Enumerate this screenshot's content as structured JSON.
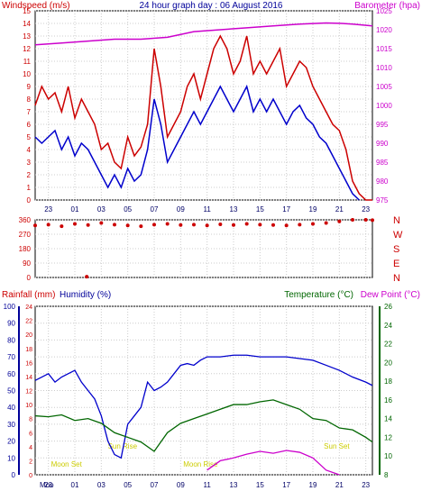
{
  "chart_data": [
    {
      "type": "line",
      "title": "24 hour graph day : 06 August 2016",
      "left_label": "Windspeed (m/s)",
      "right_label": "Barometer (hpa)",
      "x_ticks": [
        "23",
        "01",
        "03",
        "05",
        "07",
        "09",
        "11",
        "13",
        "15",
        "17",
        "19",
        "21",
        "23"
      ],
      "left_ticks": [
        "0",
        "1",
        "2",
        "3",
        "4",
        "5",
        "6",
        "7",
        "8",
        "9",
        "10",
        "11",
        "12",
        "13",
        "14",
        "15"
      ],
      "right_ticks": [
        "975",
        "980",
        "985",
        "990",
        "995",
        "1000",
        "1005",
        "1010",
        "1015",
        "1020",
        "1025"
      ],
      "ylim_left": [
        0,
        15
      ],
      "ylim_right": [
        975,
        1025
      ],
      "series": [
        {
          "color": "#cc0000",
          "x": [
            0,
            0.5,
            1,
            1.5,
            2,
            2.5,
            3,
            3.5,
            4,
            4.5,
            5,
            5.5,
            6,
            6.5,
            7,
            7.5,
            8,
            8.5,
            9,
            9.5,
            10,
            10.5,
            11,
            11.5,
            12,
            12.5,
            13,
            13.5,
            14,
            14.5,
            15,
            15.5,
            16,
            16.5,
            17,
            17.5,
            18,
            18.5,
            19,
            19.5,
            20,
            20.5,
            21,
            21.5,
            22,
            22.5,
            23,
            23.5,
            24,
            24.5,
            25,
            25.5
          ],
          "values": [
            7.5,
            9,
            8,
            8.5,
            7,
            9,
            6.5,
            8,
            7,
            6,
            4,
            4.5,
            3,
            2.5,
            5,
            3.5,
            4.2,
            6,
            12,
            9,
            5,
            6,
            7,
            9,
            10,
            8,
            10,
            12,
            13,
            12,
            10,
            11,
            13,
            10,
            11,
            10,
            11,
            12,
            9,
            10,
            11,
            10.5,
            9,
            8,
            7,
            6,
            5.5,
            4,
            1.5,
            0.5,
            0,
            0
          ]
        },
        {
          "color": "#0000cc",
          "x": [
            0,
            0.5,
            1,
            1.5,
            2,
            2.5,
            3,
            3.5,
            4,
            4.5,
            5,
            5.5,
            6,
            6.5,
            7,
            7.5,
            8,
            8.5,
            9,
            9.5,
            10,
            10.5,
            11,
            11.5,
            12,
            12.5,
            13,
            13.5,
            14,
            14.5,
            15,
            15.5,
            16,
            16.5,
            17,
            17.5,
            18,
            18.5,
            19,
            19.5,
            20,
            20.5,
            21,
            21.5,
            22,
            22.5,
            23,
            23.5,
            24,
            24.5
          ],
          "values": [
            5,
            4.5,
            5,
            5.5,
            4,
            5,
            3.5,
            4.5,
            4,
            3,
            2,
            1,
            2,
            1,
            2.5,
            1.5,
            2,
            4,
            8,
            6,
            3,
            4,
            5,
            6,
            7,
            6,
            7,
            8,
            9,
            8,
            7,
            8,
            9,
            7,
            8,
            7,
            8,
            7,
            6,
            7,
            7.5,
            6.5,
            6,
            5,
            4.5,
            3.5,
            2.5,
            1.5,
            0.5,
            0
          ]
        },
        {
          "color": "#cc00cc",
          "axis": "right",
          "x": [
            0,
            2,
            4,
            6,
            8,
            10,
            12,
            14,
            16,
            18,
            20,
            22,
            23,
            24,
            25.5
          ],
          "values": [
            1016,
            1016.5,
            1017,
            1017.5,
            1017.5,
            1018,
            1019.5,
            1020,
            1020.5,
            1021,
            1021.5,
            1021.8,
            1021.7,
            1021.5,
            1021
          ]
        }
      ]
    },
    {
      "type": "scatter",
      "right_label": [
        "N",
        "W",
        "S",
        "E",
        "N"
      ],
      "left_ticks": [
        "360",
        "270",
        "180",
        "90",
        "0"
      ],
      "ylim": [
        0,
        360
      ],
      "series": [
        {
          "color": "#cc0000",
          "x": [
            0,
            1,
            2,
            3,
            4,
            5,
            6,
            7,
            8,
            9,
            10,
            11,
            12,
            13,
            14,
            15,
            16,
            17,
            18,
            19,
            20,
            21,
            22,
            23,
            24,
            25,
            25.5,
            3.9
          ],
          "values": [
            325,
            330,
            320,
            335,
            328,
            340,
            330,
            325,
            320,
            330,
            335,
            328,
            330,
            325,
            332,
            328,
            335,
            330,
            328,
            325,
            330,
            335,
            340,
            350,
            360,
            360,
            358,
            5
          ]
        }
      ]
    },
    {
      "type": "line",
      "left_labels": [
        "Rainfall (mm)",
        "Humidity (%)"
      ],
      "right_labels": [
        "Temperature (°C)",
        "Dew Point (°C)"
      ],
      "rain_ticks": [
        "0",
        "2",
        "4",
        "6",
        "8",
        "10",
        "12",
        "14",
        "16",
        "18",
        "20",
        "22",
        "24"
      ],
      "humidity_ticks": [
        "0",
        "10",
        "20",
        "30",
        "40",
        "50",
        "60",
        "70",
        "80",
        "90",
        "100"
      ],
      "temp_ticks": [
        "8",
        "10",
        "12",
        "14",
        "16",
        "18",
        "20",
        "22",
        "24",
        "26"
      ],
      "ylim_humidity": [
        0,
        100
      ],
      "ylim_temp": [
        8,
        26
      ],
      "x_labels": [
        "Moo",
        "23",
        "01",
        "03",
        "05",
        "07",
        "09",
        "11",
        "13",
        "15",
        "17",
        "19",
        "21",
        "23"
      ],
      "annotations": [
        "Moon Set",
        "Sun Rise",
        "Moon Rise",
        "Sun Set"
      ],
      "series": [
        {
          "color": "#0000cc",
          "axis": "humidity",
          "x": [
            0,
            0.5,
            1,
            1.5,
            2,
            2.5,
            3,
            3.5,
            4,
            4.5,
            5,
            5.5,
            6,
            6.5,
            7,
            7.5,
            8,
            8.5,
            9,
            9.5,
            10,
            10.5,
            11,
            11.5,
            12,
            12.5,
            13,
            14,
            15,
            16,
            17,
            18,
            19,
            20,
            21,
            22,
            23,
            24,
            25,
            25.5
          ],
          "values": [
            56,
            58,
            60,
            55,
            58,
            60,
            62,
            55,
            50,
            45,
            35,
            20,
            12,
            10,
            30,
            35,
            40,
            55,
            50,
            52,
            55,
            60,
            65,
            66,
            65,
            68,
            70,
            70,
            71,
            71,
            70,
            70,
            70,
            69,
            68,
            65,
            62,
            58,
            55,
            53
          ]
        },
        {
          "color": "#006600",
          "axis": "temperature",
          "x": [
            0,
            1,
            2,
            3,
            4,
            5,
            6,
            7,
            8,
            9,
            10,
            11,
            12,
            13,
            14,
            15,
            16,
            17,
            18,
            19,
            20,
            21,
            22,
            23,
            24,
            25,
            25.5
          ],
          "values": [
            14.3,
            14.2,
            14.4,
            13.8,
            14,
            13.5,
            12.5,
            12,
            11.5,
            10.5,
            12.5,
            13.5,
            14,
            14.5,
            15,
            15.5,
            15.5,
            15.8,
            16,
            15.5,
            15,
            14,
            13.8,
            13,
            12.8,
            12,
            11.5
          ]
        },
        {
          "color": "#cc00cc",
          "axis": "temperature",
          "x": [
            13,
            14,
            15,
            16,
            17,
            18,
            19,
            20,
            21,
            22,
            23
          ],
          "values": [
            8.5,
            9.5,
            9.8,
            10.2,
            10.5,
            10.3,
            10.6,
            10.4,
            9.8,
            8.5,
            8
          ]
        }
      ]
    }
  ],
  "colors": {
    "grid": "#cccccc",
    "axis_panel_left": "#000099",
    "border": "#000000",
    "red": "#cc0000",
    "blue": "#0000cc",
    "magenta": "#cc00cc",
    "green": "#006600",
    "moon_text": "#cccc00"
  }
}
